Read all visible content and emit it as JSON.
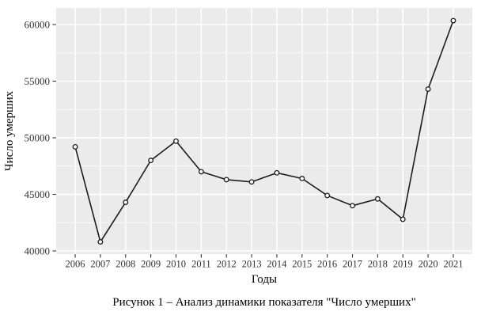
{
  "figure": {
    "caption": "Рисунок 1 – Анализ динамики показателя \"Число умерших\""
  },
  "chart_data": {
    "type": "line",
    "title": "",
    "xlabel": "Годы",
    "ylabel": "Число умерших",
    "x": [
      2006,
      2007,
      2008,
      2009,
      2010,
      2011,
      2012,
      2013,
      2014,
      2015,
      2016,
      2017,
      2018,
      2019,
      2020,
      2021
    ],
    "series": [
      {
        "name": "Число умерших",
        "values": [
          49200,
          40800,
          44300,
          48000,
          49700,
          47000,
          46300,
          46100,
          46900,
          46400,
          44900,
          44000,
          44600,
          42800,
          54300,
          60350
        ]
      }
    ],
    "yticks": [
      40000,
      45000,
      50000,
      55000,
      60000
    ],
    "yticks_minor": [
      42500,
      47500,
      52500,
      57500
    ],
    "ylim": [
      39720,
      61470
    ],
    "xlim": [
      2005.245,
      2021.755
    ],
    "legend": "none",
    "grid": {
      "horizontal_major": true,
      "horizontal_minor": true,
      "vertical_major": true,
      "vertical_minor": false
    },
    "style": {
      "panel_bg": "#ebebeb",
      "grid_color": "#ffffff",
      "line_color": "#1c1c1c",
      "marker": "open-circle",
      "marker_fill": "#ffffff",
      "axis_text_color": "#333333",
      "axis_title_color": "#000000"
    }
  }
}
